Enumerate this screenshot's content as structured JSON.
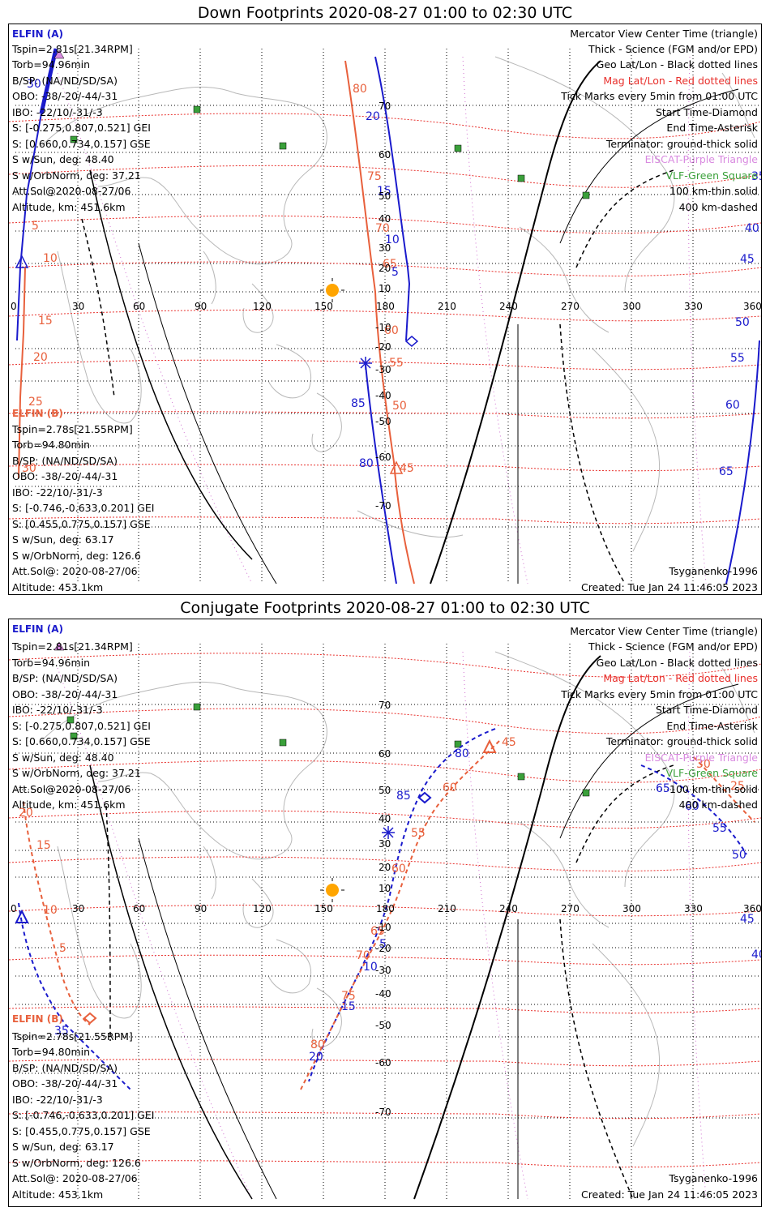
{
  "panels": [
    {
      "title": "Down Footprints 2020-08-27 01:00 to 02:30 UTC",
      "elfin_a": {
        "name": "ELFIN (A)",
        "lines": [
          "Tspin=2.81s[21.34RPM]",
          "Torb=94.96min",
          "B/SP: (NA/ND/SD/SA)",
          "OBO: -38/-20/-44/-31",
          "IBO: -22/10/-31/-3",
          "S: [-0.275,0.807,0.521] GEI",
          "S: [0.660,0.734,0.157] GSE",
          "S w/Sun, deg: 48.40",
          "S w/OrbNorm, deg: 37.21",
          "Att.Sol@2020-08-27/06",
          "Altitude, km: 451.6km"
        ]
      },
      "elfin_b": {
        "name": "ELFIN (B)",
        "lines": [
          "Tspin=2.78s[21.55RPM]",
          "Torb=94.80min",
          "B/SP: (NA/ND/SD/SA)",
          "OBO: -38/-20/-44/-31",
          "IBO: -22/10/-31/-3",
          "S: [-0.746,-0.633,0.201] GEI",
          "S: [0.455,0.775,0.157] GSE",
          "S w/Sun, deg: 63.17",
          "S w/OrbNorm, deg: 126.6",
          "Att.Sol@: 2020-08-27/06",
          "Altitude: 453.1km"
        ]
      },
      "footer_model": "Tsyganenko-1996",
      "footer_created": "Created: Tue Jan 24 11:46:05 2023"
    },
    {
      "title": "Conjugate Footprints 2020-08-27 01:00 to 02:30 UTC",
      "elfin_a": {
        "name": "ELFIN (A)",
        "lines": [
          "Tspin=2.81s[21.34RPM]",
          "Torb=94.96min",
          "B/SP: (NA/ND/SD/SA)",
          "OBO: -38/-20/-44/-31",
          "IBO: -22/10/-31/-3",
          "S: [-0.275,0.807,0.521] GEI",
          "S: [0.660,0.734,0.157] GSE",
          "S w/Sun, deg: 48.40",
          "S w/OrbNorm, deg: 37.21",
          "Att.Sol@2020-08-27/06",
          "Altitude, km: 451.6km"
        ]
      },
      "elfin_b": {
        "name": "ELFIN (B)",
        "lines": [
          "Tspin=2.78s[21.55RPM]",
          "Torb=94.80min",
          "B/SP: (NA/ND/SD/SA)",
          "OBO: -38/-20/-44/-31",
          "IBO: -22/10/-31/-3",
          "S: [-0.746,-0.633,0.201] GEI",
          "S: [0.455,0.775,0.157] GSE",
          "S w/Sun, deg: 63.17",
          "S w/OrbNorm, deg: 126.6",
          "Att.Sol@: 2020-08-27/06",
          "Altitude: 453.1km"
        ]
      },
      "footer_model": "Tsyganenko-1996",
      "footer_created": "Created: Tue Jan 24 11:46:05 2023"
    }
  ],
  "legend": [
    {
      "text": "Mercator View Center Time (triangle)",
      "color": "#000000"
    },
    {
      "text": "Thick - Science (FGM and/or EPD)",
      "color": "#000000"
    },
    {
      "text": "Geo Lat/Lon - Black dotted lines",
      "color": "#000000"
    },
    {
      "text": "Mag Lat/Lon - Red dotted lines",
      "color": "#e8302c"
    },
    {
      "text": "Tick Marks every 5min from 01:00 UTC",
      "color": "#000000"
    },
    {
      "text": "Start Time-Diamond",
      "color": "#000000"
    },
    {
      "text": "End Time-Asterisk",
      "color": "#000000"
    },
    {
      "text": "Terminator: ground-thick solid",
      "color": "#000000"
    },
    {
      "text": "EISCAT-Purple Triangle",
      "color": "#d98ae0"
    },
    {
      "text": "VLF-Green Square",
      "color": "#3aa03a"
    },
    {
      "text": "100 km-thin solid",
      "color": "#000000"
    },
    {
      "text": "400 km-dashed",
      "color": "#000000"
    }
  ],
  "axis": {
    "lon_labels": [
      "0",
      "30",
      "60",
      "90",
      "120",
      "150",
      "180",
      "210",
      "240",
      "270",
      "300",
      "330",
      "360"
    ],
    "lat_labels": [
      "70",
      "60",
      "50",
      "40",
      "30",
      "20",
      "10",
      "-10",
      "-20",
      "-30",
      "-40",
      "-50",
      "-60",
      "-70"
    ]
  },
  "down_labels": {
    "a_track": [
      "30",
      "5",
      "10",
      "15",
      "20",
      "25",
      "30"
    ],
    "b_track": [
      "80",
      "75",
      "70",
      "65",
      "60",
      "55",
      "50",
      "45"
    ],
    "a_track_mid": [
      "20",
      "15",
      "10",
      "5"
    ],
    "b_track_mid": [
      "85",
      "80"
    ],
    "a_track_right": [
      "35",
      "40",
      "45",
      "50",
      "55",
      "60",
      "65"
    ]
  },
  "conj_labels": {
    "a_left": [
      "20",
      "15",
      "10",
      "5",
      "35"
    ],
    "mid_blue": [
      "80",
      "85",
      "5",
      "10",
      "15",
      "20"
    ],
    "mid_red": [
      "45",
      "60",
      "55",
      "60",
      "65",
      "70",
      "75",
      "80"
    ],
    "right_red": [
      "30",
      "25"
    ],
    "right_blue": [
      "65",
      "60",
      "55",
      "50",
      "45",
      "40"
    ]
  },
  "colors": {
    "elfin_a": "#1a1acc",
    "elfin_b": "#e8603c",
    "mag_grid": "#e8302c",
    "geo_grid": "#000000",
    "eiscat": "#d98ae0",
    "vlf": "#3aa03a",
    "sun": "#ffa500",
    "coast": "#b8b8b8"
  }
}
